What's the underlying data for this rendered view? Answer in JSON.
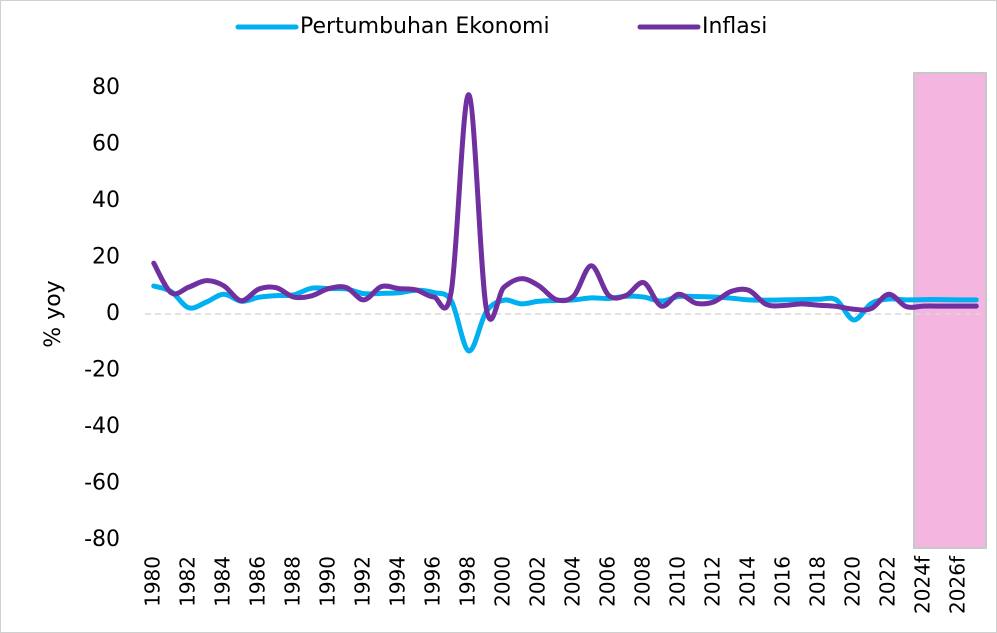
{
  "chart_data": {
    "type": "line",
    "y_label": "% yoy",
    "categories": [
      "1980",
      null,
      "1982",
      null,
      "1984",
      null,
      "1986",
      null,
      "1988",
      null,
      "1990",
      null,
      "1992",
      null,
      "1994",
      null,
      "1996",
      null,
      "1998",
      null,
      "2000",
      null,
      "2002",
      null,
      "2004",
      null,
      "2006",
      null,
      "2008",
      null,
      "2010",
      null,
      "2012",
      null,
      "2014",
      null,
      "2016",
      null,
      "2018",
      null,
      "2020",
      null,
      "2022",
      null,
      "2024f",
      null,
      "2026f",
      null
    ],
    "series": [
      {
        "name": "Pertumbuhan Ekonomi",
        "color": "#00b0f0",
        "values": [
          9.9,
          7.9,
          2.2,
          4.2,
          7.0,
          4.5,
          5.9,
          6.5,
          6.8,
          9.1,
          9.0,
          8.9,
          7.2,
          7.3,
          7.5,
          8.4,
          7.6,
          4.7,
          -13.1,
          0.8,
          4.9,
          3.6,
          4.5,
          4.8,
          5.0,
          5.7,
          5.5,
          6.3,
          6.0,
          4.6,
          6.2,
          6.2,
          6.0,
          5.6,
          5.0,
          4.9,
          5.0,
          5.1,
          5.2,
          5.0,
          -2.1,
          3.7,
          5.3,
          5.0,
          5.1,
          5.1,
          5.0,
          5.0
        ]
      },
      {
        "name": "Inflasi",
        "color": "#7030a0",
        "values": [
          18.0,
          7.5,
          9.5,
          11.8,
          10.0,
          4.7,
          8.8,
          9.3,
          6.0,
          6.4,
          9.0,
          9.4,
          5.0,
          9.7,
          9.0,
          8.5,
          6.0,
          8.0,
          77.6,
          2.0,
          9.4,
          12.5,
          10.0,
          5.1,
          6.4,
          17.1,
          6.6,
          6.6,
          11.1,
          2.8,
          7.0,
          3.8,
          4.3,
          8.0,
          8.4,
          3.4,
          3.0,
          3.6,
          3.1,
          2.7,
          1.7,
          1.9,
          7.0,
          2.6,
          2.8,
          2.8,
          2.8,
          2.8
        ]
      }
    ],
    "ylim": [
      -80,
      84
    ],
    "yticks": [
      -80,
      -60,
      -40,
      -20,
      0,
      20,
      40,
      60,
      80
    ],
    "grid": false,
    "legend": "top"
  }
}
